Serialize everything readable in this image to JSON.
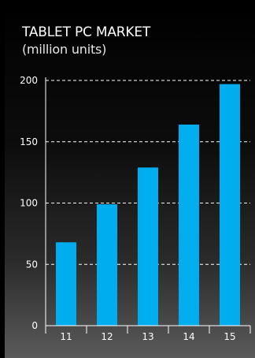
{
  "chart_data": {
    "type": "bar",
    "title": "TABLET PC MARKET",
    "subtitle": "(million units)",
    "categories": [
      "11",
      "12",
      "13",
      "14",
      "15"
    ],
    "values": [
      68,
      99,
      129,
      164,
      197
    ],
    "ylim": [
      0,
      200
    ],
    "yticks": [
      "0",
      "50",
      "100",
      "150",
      "200"
    ],
    "grid": true,
    "bar_color": "#00aeef",
    "grid_color": "#ffffff",
    "text_color": "#ffffff",
    "background_color": "#000000"
  }
}
